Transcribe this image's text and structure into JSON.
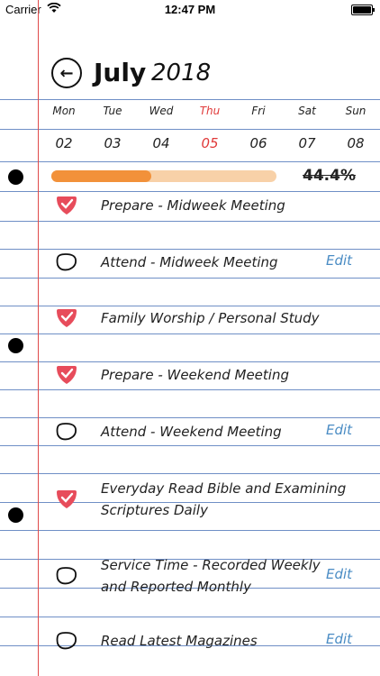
{
  "status_bar": {
    "carrier": "Carrier",
    "time": "12:47 PM"
  },
  "header": {
    "month": "July",
    "year": "2018",
    "back_icon": "arrow-left-circle-icon"
  },
  "week": {
    "days": [
      {
        "dow": "Mon",
        "date": "02",
        "today": false
      },
      {
        "dow": "Tue",
        "date": "03",
        "today": false
      },
      {
        "dow": "Wed",
        "date": "04",
        "today": false
      },
      {
        "dow": "Thu",
        "date": "05",
        "today": true
      },
      {
        "dow": "Fri",
        "date": "06",
        "today": false
      },
      {
        "dow": "Sat",
        "date": "07",
        "today": false
      },
      {
        "dow": "Sun",
        "date": "08",
        "today": false
      }
    ]
  },
  "progress": {
    "percent_label": "44.4%",
    "fraction": 0.444
  },
  "tasks": [
    {
      "lines": [
        "Prepare - Midweek Meeting"
      ],
      "checked": true,
      "edit": ""
    },
    {
      "lines": [
        "Attend - Midweek Meeting"
      ],
      "checked": false,
      "edit": "Edit"
    },
    {
      "lines": [
        "Family Worship / Personal Study"
      ],
      "checked": true,
      "edit": ""
    },
    {
      "lines": [
        "Prepare - Weekend Meeting"
      ],
      "checked": true,
      "edit": ""
    },
    {
      "lines": [
        "Attend - Weekend Meeting"
      ],
      "checked": false,
      "edit": "Edit"
    },
    {
      "lines": [
        "Everyday Read Bible and Examining",
        "Scriptures Daily"
      ],
      "checked": true,
      "edit": ""
    },
    {
      "lines": [
        "Service Time - Recorded Weekly",
        "and Reported Monthly"
      ],
      "checked": false,
      "edit": "Edit"
    },
    {
      "lines": [
        "Read Latest Magazines"
      ],
      "checked": false,
      "edit": "Edit"
    }
  ],
  "colors": {
    "accent": "#e74c5b",
    "rule_line": "#6f8fc6",
    "margin_line": "#e04a4a",
    "edit_link": "#4a8cc4",
    "progress_fill": "#f2913a",
    "progress_track": "#f8d1a8"
  }
}
